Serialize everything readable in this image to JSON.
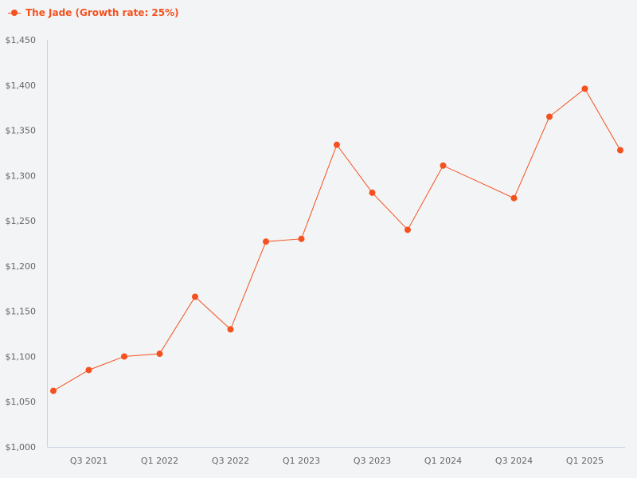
{
  "legend": {
    "label": "The Jade (Growth rate: 25%)"
  },
  "colors": {
    "series": "#f4511e",
    "axis": "#c9d3e3",
    "tick_text": "#666666",
    "background": "#f3f4f6"
  },
  "chart_data": {
    "type": "line",
    "title": "",
    "xlabel": "",
    "ylabel": "",
    "ylim": [
      1000,
      1450
    ],
    "y_ticks": [
      1000,
      1050,
      1100,
      1150,
      1200,
      1250,
      1300,
      1350,
      1400,
      1450
    ],
    "y_tick_labels": [
      "$1,000",
      "$1,050",
      "$1,100",
      "$1,150",
      "$1,200",
      "$1,250",
      "$1,300",
      "$1,350",
      "$1,400",
      "$1,450"
    ],
    "x_tick_labels": [
      "Q3 2021",
      "Q1 2022",
      "Q3 2022",
      "Q1 2023",
      "Q3 2023",
      "Q1 2024",
      "Q3 2024",
      "Q1 2025"
    ],
    "x_tick_quarter_index": [
      1,
      3,
      5,
      7,
      9,
      11,
      13,
      15
    ],
    "grid": false,
    "legend_position": "top-left",
    "series": [
      {
        "name": "The Jade (Growth rate: 25%)",
        "points": [
          {
            "x": "Q2 2021",
            "qi": 0,
            "y": 1062
          },
          {
            "x": "Q3 2021",
            "qi": 1,
            "y": 1085
          },
          {
            "x": "Q4 2021",
            "qi": 2,
            "y": 1100
          },
          {
            "x": "Q1 2022",
            "qi": 3,
            "y": 1103
          },
          {
            "x": "Q2 2022",
            "qi": 4,
            "y": 1166
          },
          {
            "x": "Q3 2022",
            "qi": 5,
            "y": 1130
          },
          {
            "x": "Q4 2022",
            "qi": 6,
            "y": 1227
          },
          {
            "x": "Q1 2023",
            "qi": 7,
            "y": 1230
          },
          {
            "x": "Q2 2023",
            "qi": 8,
            "y": 1334
          },
          {
            "x": "Q3 2023",
            "qi": 9,
            "y": 1281
          },
          {
            "x": "Q4 2023",
            "qi": 10,
            "y": 1240
          },
          {
            "x": "Q1 2024",
            "qi": 11,
            "y": 1311
          },
          {
            "x": "Q3 2024",
            "qi": 13,
            "y": 1275
          },
          {
            "x": "Q4 2024",
            "qi": 14,
            "y": 1365
          },
          {
            "x": "Q1 2025",
            "qi": 15,
            "y": 1396
          },
          {
            "x": "Q2 2025",
            "qi": 16,
            "y": 1328
          }
        ]
      }
    ]
  }
}
